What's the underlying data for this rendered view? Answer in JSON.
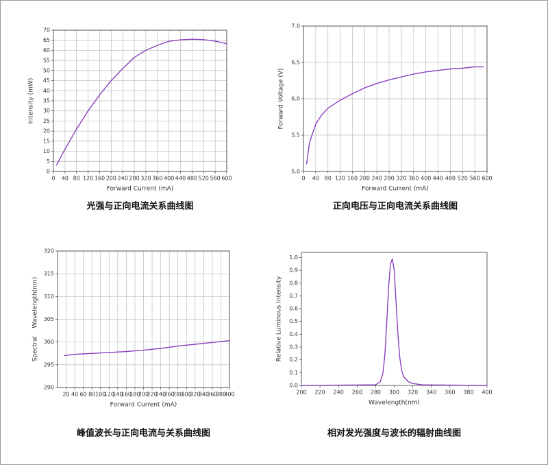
{
  "chart_data": [
    {
      "type": "line",
      "title": "光强与正向电流关系曲线图",
      "xlabel": "Forward Current (mA)",
      "ylabel": "Intensity (mW)",
      "x": [
        10,
        40,
        80,
        120,
        160,
        200,
        240,
        280,
        320,
        360,
        400,
        440,
        480,
        520,
        560,
        600
      ],
      "values": [
        3,
        11,
        21,
        30,
        38,
        45,
        51,
        56.5,
        60,
        62.5,
        64.5,
        65.2,
        65.5,
        65.3,
        64.6,
        63.3
      ],
      "color": "#8a3fbf",
      "grid": true,
      "xlim": [
        0,
        600
      ],
      "xticks": [
        0,
        40,
        80,
        120,
        160,
        200,
        240,
        280,
        320,
        360,
        400,
        440,
        480,
        520,
        560,
        600
      ],
      "ylim": [
        0,
        70
      ],
      "yticks": [
        0,
        5,
        10,
        15,
        20,
        25,
        30,
        35,
        40,
        45,
        50,
        55,
        60,
        65,
        70
      ]
    },
    {
      "type": "line",
      "title": "正向电压与正向电流关系曲线图",
      "xlabel": "Forward Current (mA)",
      "ylabel": "Forward Voltage (V)",
      "x": [
        10,
        20,
        40,
        60,
        80,
        120,
        160,
        200,
        240,
        280,
        320,
        360,
        400,
        440,
        480,
        520,
        560,
        590
      ],
      "values": [
        5.1,
        5.4,
        5.65,
        5.78,
        5.87,
        5.98,
        6.07,
        6.15,
        6.21,
        6.26,
        6.3,
        6.34,
        6.37,
        6.39,
        6.41,
        6.42,
        6.44,
        6.44
      ],
      "color": "#8a3fbf",
      "grid": true,
      "xlim": [
        0,
        600
      ],
      "xticks": [
        0,
        40,
        80,
        120,
        160,
        200,
        240,
        280,
        320,
        360,
        400,
        440,
        480,
        520,
        560,
        600
      ],
      "ylim": [
        5,
        7
      ],
      "yticks": [
        {
          "value": 5,
          "label": "5.0"
        },
        5.5,
        {
          "value": 6,
          "label": "6.0"
        },
        6.5,
        {
          "value": 7,
          "label": "7.0"
        }
      ]
    },
    {
      "type": "line",
      "title": "峰值波长与正向电流与关系曲线图",
      "xlabel": "Forward Current (mA)",
      "ylabel": "Spectral    Wavelength(nm)",
      "x": [
        15,
        40,
        80,
        120,
        160,
        200,
        240,
        280,
        320,
        360,
        400
      ],
      "values": [
        297,
        297.3,
        297.5,
        297.7,
        297.9,
        298.2,
        298.6,
        299.1,
        299.5,
        299.9,
        300.3
      ],
      "color": "#8a3fbf",
      "grid": true,
      "xlim": [
        0,
        400
      ],
      "xticks": [
        20,
        40,
        60,
        80,
        100,
        120,
        140,
        160,
        180,
        200,
        220,
        240,
        260,
        280,
        300,
        320,
        340,
        360,
        380,
        400
      ],
      "ylim": [
        290,
        320
      ],
      "yticks": [
        290,
        295,
        300,
        305,
        310,
        315,
        320
      ]
    },
    {
      "type": "line",
      "title": "相对发光强度与波长的辐射曲线图",
      "xlabel": "Wavelength(nm)",
      "ylabel": "Relative Luminous Intensity",
      "x": [
        200,
        280,
        285,
        288,
        290,
        292,
        294,
        296,
        298,
        300,
        302,
        304,
        306,
        308,
        310,
        315,
        320,
        330,
        400
      ],
      "values": [
        0,
        0.005,
        0.03,
        0.1,
        0.25,
        0.5,
        0.78,
        0.95,
        0.99,
        0.9,
        0.65,
        0.4,
        0.22,
        0.12,
        0.07,
        0.03,
        0.015,
        0.005,
        0
      ],
      "color": "#8a3fbf",
      "grid": false,
      "xlim": [
        200,
        400
      ],
      "xticks": [
        200,
        220,
        240,
        260,
        280,
        300,
        320,
        340,
        360,
        380,
        400
      ],
      "ylim": [
        0,
        1.04
      ],
      "yticks": [
        {
          "value": 0,
          "label": "0.0"
        },
        0.1,
        0.2,
        0.3,
        0.4,
        0.5,
        0.6,
        0.7,
        0.8,
        0.9,
        {
          "value": 1,
          "label": "1.0"
        }
      ]
    }
  ]
}
